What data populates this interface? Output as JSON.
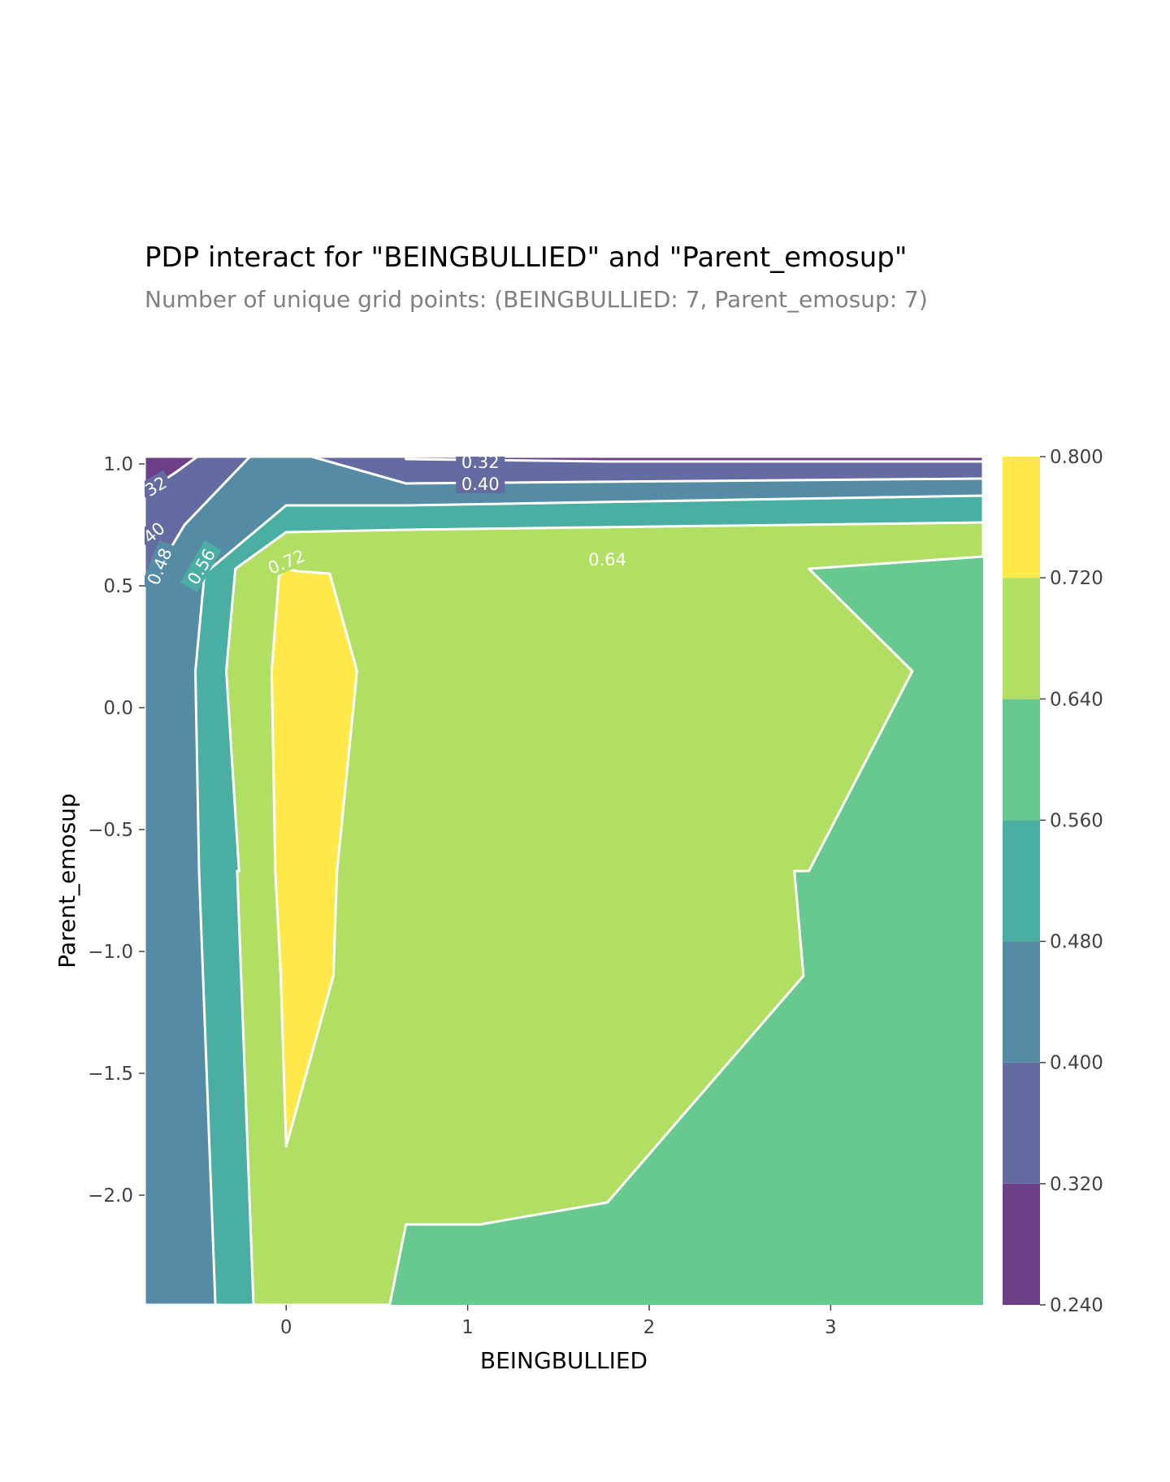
{
  "title": "PDP interact for \"BEINGBULLIED\" and \"Parent_emosup\"",
  "subtitle": "Number of unique grid points: (BEINGBULLIED: 7, Parent_emosup: 7)",
  "chart_data": {
    "type": "contour",
    "xlabel": "BEINGBULLIED",
    "ylabel": "Parent_emosup",
    "xlim": [
      -0.78,
      3.84
    ],
    "ylim": [
      -2.45,
      1.03
    ],
    "xticks": [
      0,
      1,
      2,
      3
    ],
    "yticks": [
      1.0,
      0.5,
      0.0,
      -0.5,
      -1.0,
      -1.5,
      -2.0
    ],
    "colorbar": {
      "levels": [
        0.24,
        0.32,
        0.4,
        0.48,
        0.56,
        0.64,
        0.72,
        0.8
      ],
      "tick_labels": [
        "0.240",
        "0.320",
        "0.400",
        "0.480",
        "0.560",
        "0.640",
        "0.720",
        "0.800"
      ],
      "colors": [
        "#6c3f86",
        "#646ba0",
        "#558ba5",
        "#4aaea2",
        "#67c98f",
        "#b0df63",
        "#ffe94a"
      ]
    },
    "background_level_color": "#67c98f",
    "contours": [
      {
        "level": 0.64,
        "fill": "#b0df63",
        "points": [
          [
            0.48,
            1.03
          ],
          [
            3.84,
            1.03
          ],
          [
            3.84,
            0.62
          ],
          [
            2.88,
            0.57
          ],
          [
            3.45,
            0.15
          ],
          [
            2.88,
            -0.67
          ],
          [
            2.8,
            -0.67
          ],
          [
            2.85,
            -1.1
          ],
          [
            1.77,
            -2.03
          ],
          [
            1.3,
            -2.09
          ],
          [
            1.07,
            -2.12
          ],
          [
            0.66,
            -2.12
          ],
          [
            0.57,
            -2.45
          ],
          [
            -0.78,
            -2.45
          ],
          [
            -0.78,
            1.03
          ]
        ]
      },
      {
        "level": 0.56,
        "fill": "#4aaea2",
        "points": [
          [
            -0.78,
            1.03
          ],
          [
            3.84,
            1.03
          ],
          [
            3.84,
            0.76
          ],
          [
            0.66,
            0.73
          ],
          [
            0.0,
            0.72
          ],
          [
            -0.28,
            0.57
          ],
          [
            -0.33,
            0.15
          ],
          [
            -0.26,
            -0.67
          ],
          [
            -0.27,
            -0.67
          ],
          [
            -0.18,
            -2.45
          ],
          [
            -0.78,
            -2.45
          ]
        ]
      },
      {
        "level": 0.48,
        "fill": "#558ba5",
        "points": [
          [
            -0.78,
            1.03
          ],
          [
            3.84,
            1.03
          ],
          [
            3.84,
            0.87
          ],
          [
            0.66,
            0.83
          ],
          [
            0.0,
            0.83
          ],
          [
            -0.45,
            0.55
          ],
          [
            -0.5,
            0.15
          ],
          [
            -0.48,
            -0.67
          ],
          [
            -0.39,
            -2.45
          ],
          [
            -0.78,
            -2.45
          ]
        ]
      },
      {
        "level": 0.4,
        "fill": "#646ba0",
        "points": [
          [
            -0.78,
            1.03
          ],
          [
            3.84,
            1.03
          ],
          [
            3.84,
            0.94
          ],
          [
            0.66,
            0.92
          ],
          [
            0.14,
            1.03
          ],
          [
            -0.2,
            1.03
          ],
          [
            -0.56,
            0.75
          ],
          [
            -0.72,
            0.55
          ],
          [
            -0.78,
            0.53
          ]
        ]
      },
      {
        "level": 0.32,
        "fill": "#6c3f86",
        "points": [
          [
            -0.78,
            1.03
          ],
          [
            -0.49,
            1.03
          ],
          [
            -0.6,
            0.97
          ],
          [
            -0.78,
            0.88
          ]
        ]
      },
      {
        "level": 0.32,
        "fill": "#6c3f86",
        "points": [
          [
            0.66,
            1.03
          ],
          [
            3.84,
            1.03
          ],
          [
            3.84,
            1.01
          ],
          [
            1.77,
            1.01
          ],
          [
            0.66,
            1.02
          ]
        ]
      },
      {
        "level": 0.72,
        "fill": "#ffe94a",
        "points": [
          [
            -0.04,
            0.54
          ],
          [
            0.0,
            0.57
          ],
          [
            0.06,
            0.56
          ],
          [
            0.24,
            0.55
          ],
          [
            0.39,
            0.15
          ],
          [
            0.28,
            -0.67
          ],
          [
            0.26,
            -1.1
          ],
          [
            0.0,
            -1.8
          ],
          [
            -0.03,
            -1.1
          ],
          [
            -0.06,
            -0.67
          ],
          [
            -0.08,
            0.15
          ]
        ]
      }
    ],
    "contour_labels": [
      {
        "text": "0.32",
        "x": 1.07,
        "y": 1.01,
        "rotation": 0
      },
      {
        "text": "0.40",
        "x": 1.07,
        "y": 0.92,
        "rotation": 0
      },
      {
        "text": "0.64",
        "x": 1.77,
        "y": 0.61,
        "rotation": 0
      },
      {
        "text": "0.72",
        "x": 0.0,
        "y": 0.6,
        "rotation": -22
      },
      {
        "text": "0.56",
        "x": -0.47,
        "y": 0.58,
        "rotation": -60
      },
      {
        "text": "0.48",
        "x": -0.7,
        "y": 0.58,
        "rotation": -68
      },
      {
        "text": "40",
        "x": -0.73,
        "y": 0.72,
        "rotation": -40
      },
      {
        "text": "32",
        "x": -0.72,
        "y": 0.91,
        "rotation": -30
      }
    ]
  }
}
